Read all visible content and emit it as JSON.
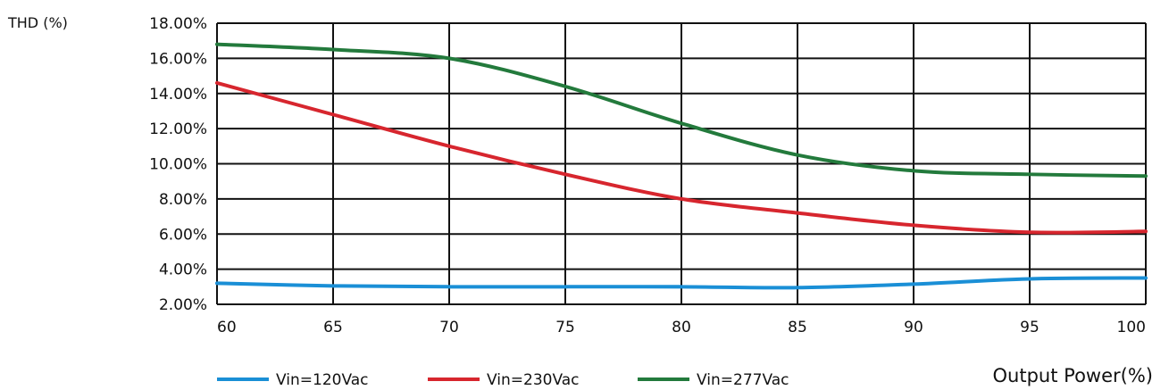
{
  "chart_data": {
    "type": "line",
    "ylabel": "THD (%)",
    "xlabel": "Output Power(%)",
    "x": [
      60,
      65,
      70,
      75,
      80,
      85,
      90,
      95,
      100
    ],
    "x_ticks": [
      "60",
      "65",
      "70",
      "75",
      "80",
      "85",
      "90",
      "95",
      "100"
    ],
    "xlim": [
      60,
      100
    ],
    "ylim": [
      2,
      18
    ],
    "y_ticks": [
      2,
      4,
      6,
      8,
      10,
      12,
      14,
      16,
      18
    ],
    "y_tick_labels": [
      "2.00%",
      "4.00%",
      "6.00%",
      "8.00%",
      "10.00%",
      "12.00%",
      "14.00%",
      "16.00%",
      "18.00%"
    ],
    "grid": true,
    "legend_position": "bottom",
    "series": [
      {
        "name": "Vin=120Vac",
        "color": "#1a8fd6",
        "values": [
          3.2,
          3.05,
          3.0,
          3.0,
          3.0,
          2.95,
          3.15,
          3.45,
          3.5
        ]
      },
      {
        "name": "Vin=230Vac",
        "color": "#d7262e",
        "values": [
          14.6,
          12.8,
          11.0,
          9.4,
          8.0,
          7.2,
          6.5,
          6.1,
          6.15
        ]
      },
      {
        "name": "Vin=277Vac",
        "color": "#237a3c",
        "values": [
          16.8,
          16.5,
          16.0,
          14.4,
          12.3,
          10.5,
          9.6,
          9.4,
          9.3
        ]
      }
    ]
  }
}
